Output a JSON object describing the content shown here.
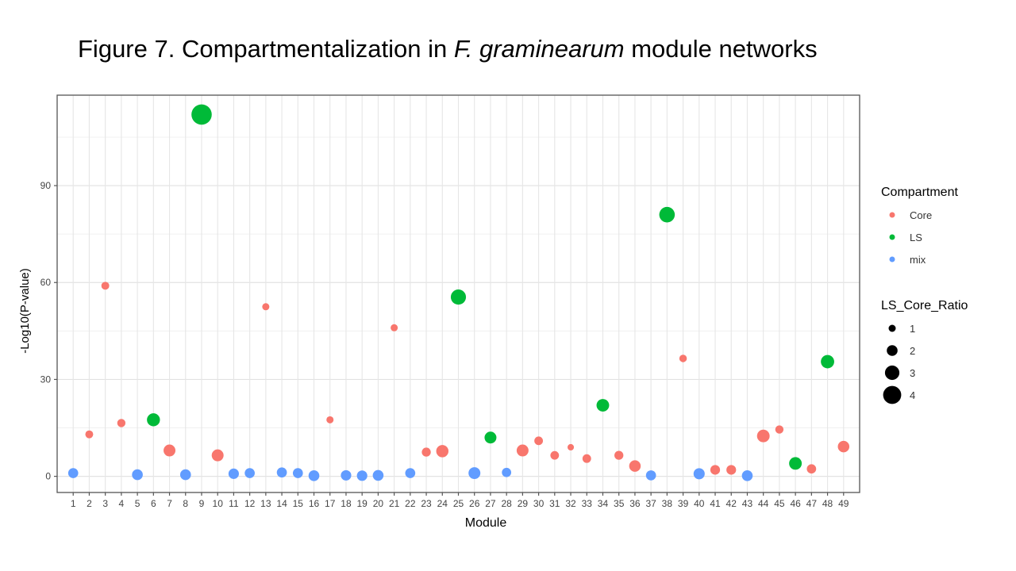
{
  "figure": {
    "title_prefix": "Figure 7. Compartmentalization in ",
    "title_species": "F. graminearum",
    "title_suffix": " module networks"
  },
  "chart_data": {
    "type": "scatter",
    "xlabel": "Module",
    "ylabel": "-Log10(P-value)",
    "ylim": [
      -5,
      118
    ],
    "yticks": [
      0,
      30,
      60,
      90
    ],
    "grid": true,
    "legend_position": "right",
    "colors": {
      "Core": "#F8766D",
      "LS": "#00BA38",
      "mix": "#619CFF"
    },
    "legend_compartment": {
      "title": "Compartment",
      "items": [
        "Core",
        "LS",
        "mix"
      ]
    },
    "legend_ratio": {
      "title": "LS_Core_Ratio",
      "items": [
        1,
        2,
        3,
        4
      ]
    },
    "points": [
      {
        "module": 1,
        "value": 1,
        "compartment": "mix",
        "ratio": 1.8
      },
      {
        "module": 2,
        "value": 13,
        "compartment": "Core",
        "ratio": 1.2
      },
      {
        "module": 3,
        "value": 59,
        "compartment": "Core",
        "ratio": 1.2
      },
      {
        "module": 4,
        "value": 16.5,
        "compartment": "Core",
        "ratio": 1.3
      },
      {
        "module": 5,
        "value": 0.5,
        "compartment": "mix",
        "ratio": 2.0
      },
      {
        "module": 6,
        "value": 17.5,
        "compartment": "LS",
        "ratio": 2.6
      },
      {
        "module": 7,
        "value": 8,
        "compartment": "Core",
        "ratio": 2.3
      },
      {
        "module": 8,
        "value": 0.5,
        "compartment": "mix",
        "ratio": 2.0
      },
      {
        "module": 9,
        "value": 112,
        "compartment": "LS",
        "ratio": 4.6
      },
      {
        "module": 10,
        "value": 6.5,
        "compartment": "Core",
        "ratio": 2.3
      },
      {
        "module": 11,
        "value": 0.8,
        "compartment": "mix",
        "ratio": 1.9
      },
      {
        "module": 12,
        "value": 1,
        "compartment": "mix",
        "ratio": 1.8
      },
      {
        "module": 13,
        "value": 52.5,
        "compartment": "Core",
        "ratio": 1.0
      },
      {
        "module": 14,
        "value": 1.2,
        "compartment": "mix",
        "ratio": 1.8
      },
      {
        "module": 15,
        "value": 1,
        "compartment": "mix",
        "ratio": 1.8
      },
      {
        "module": 16,
        "value": 0.2,
        "compartment": "mix",
        "ratio": 2.0
      },
      {
        "module": 17,
        "value": 17.5,
        "compartment": "Core",
        "ratio": 1.0
      },
      {
        "module": 18,
        "value": 0.3,
        "compartment": "mix",
        "ratio": 1.9
      },
      {
        "module": 19,
        "value": 0.2,
        "compartment": "mix",
        "ratio": 1.9
      },
      {
        "module": 20,
        "value": 0.3,
        "compartment": "mix",
        "ratio": 2.0
      },
      {
        "module": 21,
        "value": 46,
        "compartment": "Core",
        "ratio": 1.0
      },
      {
        "module": 22,
        "value": 1,
        "compartment": "mix",
        "ratio": 1.8
      },
      {
        "module": 23,
        "value": 7.5,
        "compartment": "Core",
        "ratio": 1.5
      },
      {
        "module": 24,
        "value": 7.8,
        "compartment": "Core",
        "ratio": 2.4
      },
      {
        "module": 25,
        "value": 55.5,
        "compartment": "LS",
        "ratio": 3.2
      },
      {
        "module": 26,
        "value": 1,
        "compartment": "mix",
        "ratio": 2.3
      },
      {
        "module": 27,
        "value": 12,
        "compartment": "LS",
        "ratio": 2.3
      },
      {
        "module": 28,
        "value": 1.2,
        "compartment": "mix",
        "ratio": 1.6
      },
      {
        "module": 29,
        "value": 8,
        "compartment": "Core",
        "ratio": 2.3
      },
      {
        "module": 30,
        "value": 11,
        "compartment": "Core",
        "ratio": 1.4
      },
      {
        "module": 31,
        "value": 6.5,
        "compartment": "Core",
        "ratio": 1.4
      },
      {
        "module": 32,
        "value": 9,
        "compartment": "Core",
        "ratio": 0.8
      },
      {
        "module": 33,
        "value": 5.5,
        "compartment": "Core",
        "ratio": 1.4
      },
      {
        "module": 34,
        "value": 22,
        "compartment": "LS",
        "ratio": 2.5
      },
      {
        "module": 35,
        "value": 6.5,
        "compartment": "Core",
        "ratio": 1.5
      },
      {
        "module": 36,
        "value": 3.2,
        "compartment": "Core",
        "ratio": 2.2
      },
      {
        "module": 37,
        "value": 0.3,
        "compartment": "mix",
        "ratio": 1.8
      },
      {
        "module": 38,
        "value": 81,
        "compartment": "LS",
        "ratio": 3.3
      },
      {
        "module": 39,
        "value": 36.5,
        "compartment": "Core",
        "ratio": 1.1
      },
      {
        "module": 40,
        "value": 0.8,
        "compartment": "mix",
        "ratio": 2.1
      },
      {
        "module": 41,
        "value": 2,
        "compartment": "Core",
        "ratio": 1.7
      },
      {
        "module": 42,
        "value": 2,
        "compartment": "Core",
        "ratio": 1.7
      },
      {
        "module": 43,
        "value": 0.2,
        "compartment": "mix",
        "ratio": 2.0
      },
      {
        "module": 44,
        "value": 12.5,
        "compartment": "Core",
        "ratio": 2.5
      },
      {
        "module": 45,
        "value": 14.5,
        "compartment": "Core",
        "ratio": 1.3
      },
      {
        "module": 46,
        "value": 4,
        "compartment": "LS",
        "ratio": 2.5
      },
      {
        "module": 47,
        "value": 2.3,
        "compartment": "Core",
        "ratio": 1.6
      },
      {
        "module": 48,
        "value": 35.5,
        "compartment": "LS",
        "ratio": 2.7
      },
      {
        "module": 49,
        "value": 9.2,
        "compartment": "Core",
        "ratio": 2.2
      }
    ]
  }
}
